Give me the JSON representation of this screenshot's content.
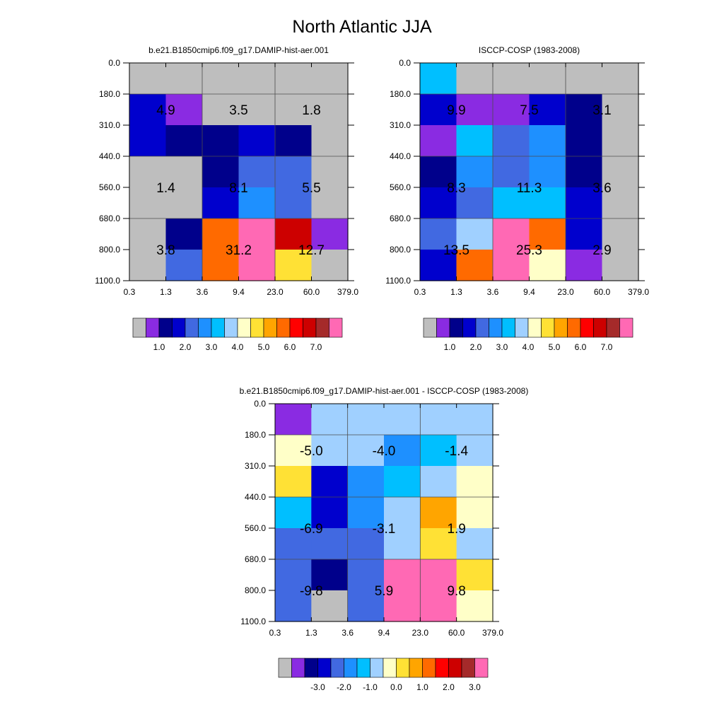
{
  "title": "North Atlantic JJA",
  "colors": {
    "palette": [
      "#bebebe",
      "#8a2be2",
      "#00008b",
      "#0000cd",
      "#4169e1",
      "#1e90ff",
      "#00bfff",
      "#a0d0ff",
      "#ffffc8",
      "#ffe135",
      "#ffa500",
      "#ff6a00",
      "#ff0000",
      "#cd0000",
      "#a52a2a",
      "#ff69b4"
    ]
  },
  "chart_data": [
    {
      "type": "heatmap",
      "title": "b.e21.B1850cmip6.f09_g17.DAMIP-hist-aer.001",
      "x_ticks": [
        "0.3",
        "1.3",
        "3.6",
        "9.4",
        "23.0",
        "60.0",
        "379.0"
      ],
      "y_ticks": [
        "0.0",
        "180.0",
        "310.0",
        "440.0",
        "560.0",
        "680.0",
        "800.0",
        "1100.0"
      ],
      "cell_colors": [
        [
          0,
          0,
          0,
          0,
          0,
          0
        ],
        [
          3,
          1,
          0,
          0,
          0,
          0
        ],
        [
          3,
          2,
          2,
          3,
          2,
          0
        ],
        [
          0,
          0,
          2,
          4,
          4,
          0
        ],
        [
          0,
          0,
          3,
          5,
          4,
          0
        ],
        [
          0,
          2,
          11,
          15,
          13,
          1
        ],
        [
          0,
          4,
          11,
          15,
          9,
          0
        ]
      ],
      "block_values": [
        [
          "4.9",
          "3.5",
          "1.8"
        ],
        [
          "1.4",
          "8.1",
          "5.5"
        ],
        [
          "3.8",
          "31.2",
          "12.7"
        ]
      ],
      "colorbar": {
        "labels": [
          "1.0",
          "2.0",
          "3.0",
          "4.0",
          "5.0",
          "6.0",
          "7.0"
        ],
        "start_box": 1
      }
    },
    {
      "type": "heatmap",
      "title": "ISCCP-COSP (1983-2008)",
      "x_ticks": [
        "0.3",
        "1.3",
        "3.6",
        "9.4",
        "23.0",
        "60.0",
        "379.0"
      ],
      "y_ticks": [
        "0.0",
        "180.0",
        "310.0",
        "440.0",
        "560.0",
        "680.0",
        "800.0",
        "1100.0"
      ],
      "cell_colors": [
        [
          6,
          0,
          0,
          0,
          0,
          0
        ],
        [
          3,
          1,
          1,
          3,
          2,
          0
        ],
        [
          1,
          6,
          4,
          5,
          2,
          0
        ],
        [
          2,
          5,
          4,
          5,
          2,
          0
        ],
        [
          3,
          4,
          6,
          6,
          3,
          0
        ],
        [
          4,
          7,
          15,
          11,
          3,
          0
        ],
        [
          3,
          11,
          15,
          8,
          1,
          0
        ]
      ],
      "block_values": [
        [
          "9.9",
          "7.5",
          "3.1"
        ],
        [
          "8.3",
          "11.3",
          "3.6"
        ],
        [
          "13.5",
          "25.3",
          "2.9"
        ]
      ],
      "colorbar": {
        "labels": [
          "1.0",
          "2.0",
          "3.0",
          "4.0",
          "5.0",
          "6.0",
          "7.0"
        ],
        "start_box": 1
      }
    },
    {
      "type": "heatmap",
      "title": "b.e21.B1850cmip6.f09_g17.DAMIP-hist-aer.001 - ISCCP-COSP (1983-2008)",
      "x_ticks": [
        "0.3",
        "1.3",
        "3.6",
        "9.4",
        "23.0",
        "60.0",
        "379.0"
      ],
      "y_ticks": [
        "0.0",
        "180.0",
        "310.0",
        "440.0",
        "560.0",
        "680.0",
        "800.0",
        "1100.0"
      ],
      "cell_colors": [
        [
          1,
          7,
          7,
          7,
          7,
          7
        ],
        [
          8,
          7,
          7,
          5,
          6,
          7
        ],
        [
          9,
          3,
          5,
          6,
          7,
          8
        ],
        [
          6,
          3,
          5,
          7,
          10,
          8
        ],
        [
          4,
          4,
          4,
          7,
          9,
          7
        ],
        [
          4,
          2,
          4,
          15,
          15,
          9
        ],
        [
          4,
          0,
          4,
          15,
          15,
          8
        ]
      ],
      "block_values": [
        [
          "-5.0",
          "-4.0",
          "-1.4"
        ],
        [
          "-6.9",
          "-3.1",
          "1.9"
        ],
        [
          "-9.8",
          "5.9",
          "9.8"
        ]
      ],
      "colorbar": {
        "labels": [
          "-3.0",
          "-2.0",
          "-1.0",
          "0.0",
          "1.0",
          "2.0",
          "3.0"
        ],
        "start_box": 2
      }
    }
  ]
}
